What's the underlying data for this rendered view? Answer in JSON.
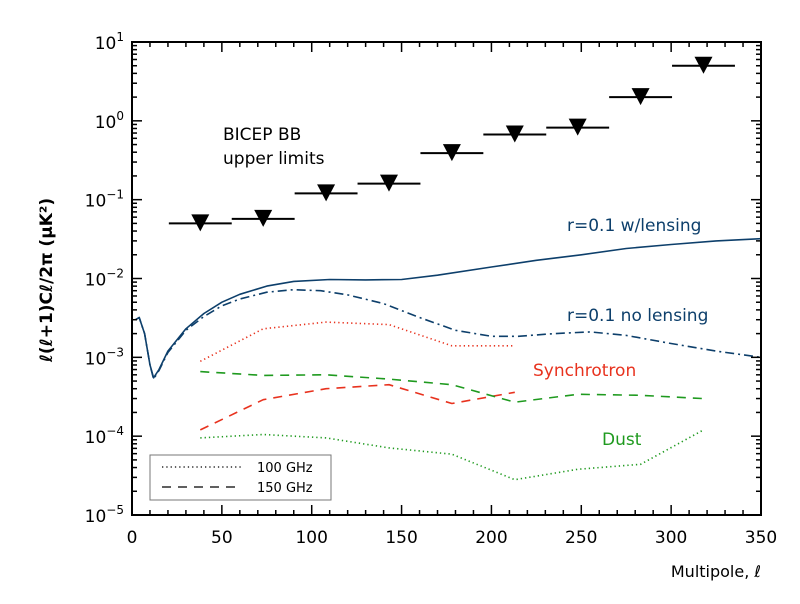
{
  "chart_data": {
    "type": "line",
    "xlabel": "Multipole, ℓ",
    "ylabel": "ℓ(ℓ+1)Cℓ/2π (μK²)",
    "xlim": [
      0,
      350
    ],
    "ylim": [
      1e-05,
      10
    ],
    "yscale": "log",
    "grid": false,
    "x_ticks": [
      "0",
      "50",
      "100",
      "150",
      "200",
      "250",
      "300",
      "350"
    ],
    "y_ticks": [
      {
        "base": "10",
        "exp": "1"
      },
      {
        "base": "10",
        "exp": "0"
      },
      {
        "base": "10",
        "exp": "-1"
      },
      {
        "base": "10",
        "exp": "-2"
      },
      {
        "base": "10",
        "exp": "-3"
      },
      {
        "base": "10",
        "exp": "-4"
      },
      {
        "base": "10",
        "exp": "-5"
      }
    ],
    "upper_limits": {
      "label_line1": "BICEP BB",
      "label_line2": "upper limits",
      "bin_halfwidth": 17.5,
      "x": [
        38,
        73,
        108,
        143,
        178,
        213,
        248,
        283,
        318
      ],
      "y": [
        0.05,
        0.057,
        0.12,
        0.16,
        0.39,
        0.67,
        0.82,
        2.0,
        5.0
      ]
    },
    "series": [
      {
        "name": "r=0.1 w/lensing",
        "style": "solid",
        "color": "#0d3f6b",
        "x": [
          2,
          4,
          7,
          10,
          12,
          15,
          20,
          30,
          40,
          50,
          60,
          75,
          90,
          110,
          130,
          150,
          170,
          200,
          225,
          250,
          275,
          300,
          325,
          350
        ],
        "y": [
          0.003,
          0.0032,
          0.002,
          0.0008,
          0.00055,
          0.0007,
          0.0012,
          0.0023,
          0.0036,
          0.005,
          0.0063,
          0.008,
          0.0092,
          0.0097,
          0.0096,
          0.0097,
          0.011,
          0.014,
          0.017,
          0.02,
          0.024,
          0.027,
          0.03,
          0.032
        ]
      },
      {
        "name": "r=0.1 no lensing",
        "style": "dashdot",
        "color": "#0d3f6b",
        "x": [
          2,
          4,
          7,
          10,
          12,
          15,
          20,
          30,
          40,
          50,
          60,
          75,
          90,
          105,
          120,
          140,
          160,
          180,
          200,
          215,
          235,
          255,
          275,
          300,
          325,
          350
        ],
        "y": [
          0.003,
          0.0032,
          0.002,
          0.0008,
          0.00053,
          0.00068,
          0.00115,
          0.0022,
          0.0033,
          0.0045,
          0.0055,
          0.0067,
          0.0072,
          0.007,
          0.0062,
          0.0048,
          0.0032,
          0.0022,
          0.00185,
          0.00185,
          0.002,
          0.0021,
          0.0019,
          0.0015,
          0.0012,
          0.001
        ]
      },
      {
        "name": "Synchrotron",
        "frequency": "100 GHz",
        "style": "dotted",
        "color": "#e8321e",
        "x": [
          38,
          73,
          108,
          143,
          178,
          213
        ],
        "y": [
          0.00089,
          0.0023,
          0.0028,
          0.0026,
          0.0014,
          0.0014
        ]
      },
      {
        "name": "Synchrotron",
        "frequency": "150 GHz",
        "style": "dashed",
        "color": "#e8321e",
        "x": [
          38,
          73,
          108,
          143,
          178,
          213
        ],
        "y": [
          0.00012,
          0.00029,
          0.0004,
          0.00045,
          0.00026,
          0.00036
        ]
      },
      {
        "name": "Dust",
        "frequency": "150 GHz",
        "style": "dashed",
        "color": "#1f9a1f",
        "x": [
          38,
          73,
          108,
          143,
          178,
          213,
          248,
          283,
          318
        ],
        "y": [
          0.00066,
          0.00059,
          0.0006,
          0.00053,
          0.00045,
          0.00027,
          0.00034,
          0.00033,
          0.0003
        ]
      },
      {
        "name": "Dust",
        "frequency": "100 GHz",
        "style": "dotted",
        "color": "#1f9a1f",
        "x": [
          38,
          73,
          108,
          143,
          178,
          213,
          248,
          283,
          318
        ],
        "y": [
          9.5e-05,
          0.000105,
          9.5e-05,
          7.1e-05,
          5.9e-05,
          2.8e-05,
          3.8e-05,
          4.4e-05,
          0.00012
        ]
      }
    ],
    "annotations": {
      "lensing": "r=0.1 w/lensing",
      "nolensing": "r=0.1 no lensing",
      "synchrotron": "Synchrotron",
      "dust": "Dust"
    },
    "legend": {
      "placement": "bottom-left",
      "entries": [
        {
          "label": "100 GHz",
          "style": "dotted"
        },
        {
          "label": "150 GHz",
          "style": "dashed"
        }
      ]
    }
  }
}
